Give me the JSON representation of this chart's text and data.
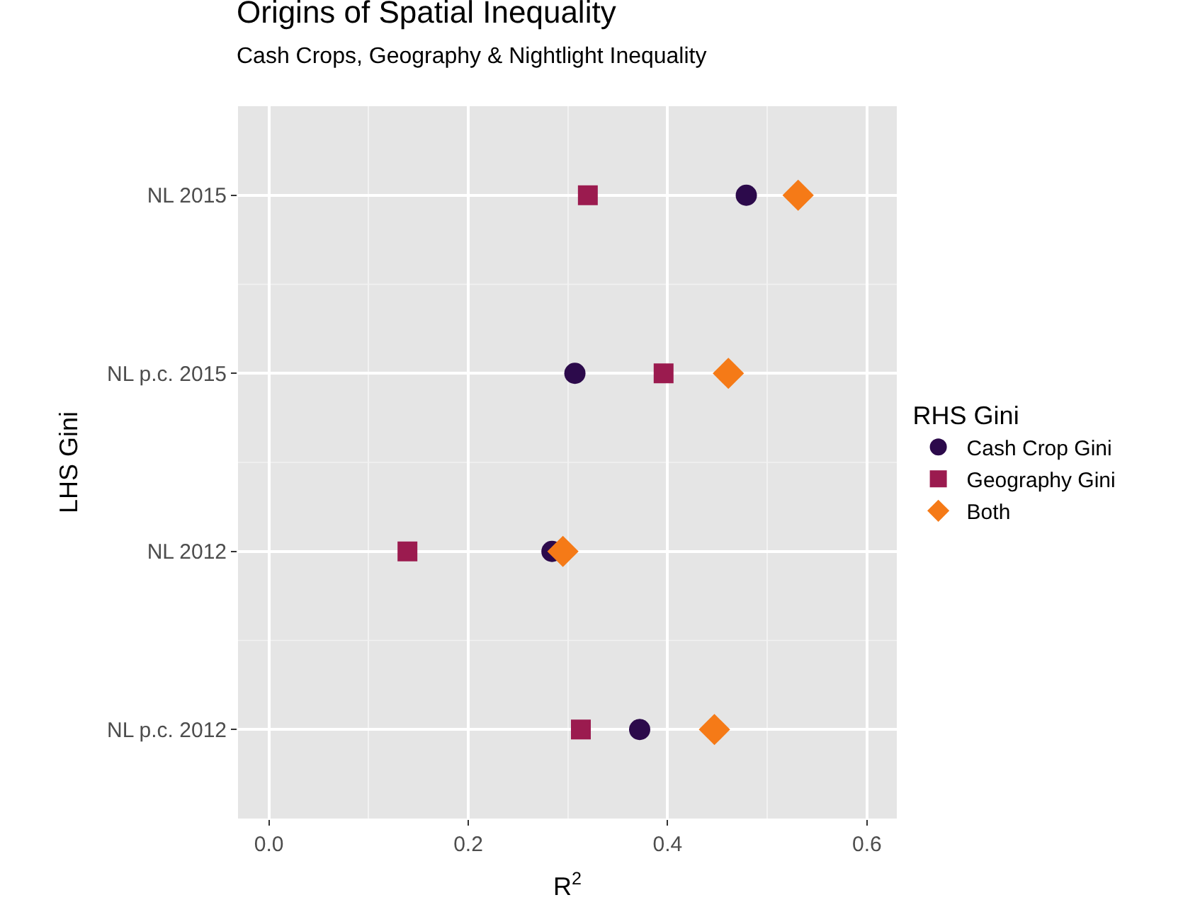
{
  "chart_data": {
    "type": "scatter",
    "orientation": "horizontal",
    "title": "Origins of Spatial Inequality",
    "subtitle": "Cash Crops, Geography & Nightlight Inequality",
    "xlabel": "R$^{2}$",
    "ylabel": "LHS Gini",
    "legend_title": "RHS Gini",
    "categories": [
      "NL 2015",
      "NL p.c. 2015",
      "NL 2012",
      "NL p.c. 2012"
    ],
    "series": [
      {
        "name": "Cash Crop Gini",
        "color": "#2c0a4b",
        "marker": "circle",
        "values": [
          0.479,
          0.307,
          0.284,
          0.372
        ]
      },
      {
        "name": "Geography Gini",
        "color": "#9b1b4f",
        "marker": "square",
        "values": [
          0.32,
          0.396,
          0.139,
          0.313
        ]
      },
      {
        "name": "Both",
        "color": "#f57a17",
        "marker": "diamond",
        "values": [
          0.531,
          0.461,
          0.295,
          0.447
        ]
      }
    ],
    "xlim": [
      -0.031,
      0.63
    ],
    "xticks": [
      {
        "value": 0,
        "label": "0.0"
      },
      0.2,
      0.4,
      0.6
    ],
    "grid": true,
    "legend": "right"
  }
}
